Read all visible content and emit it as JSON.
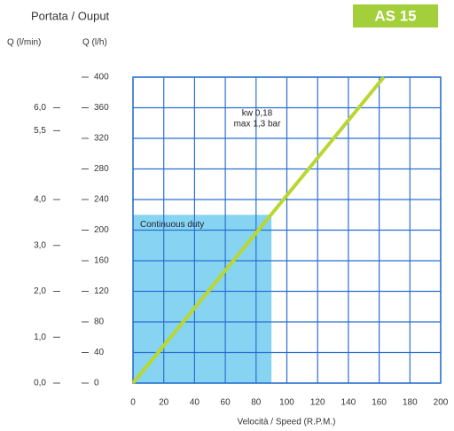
{
  "chart_data": {
    "type": "line",
    "title": "Portata / Ouput",
    "badge": "AS 15",
    "badge_color": "#a3cf3a",
    "x_label": "Velocità / Speed (R.P.M.)",
    "y_label": "Q (l/h)",
    "y2_label": "Q (l/min)",
    "x": [
      0,
      163
    ],
    "series": [
      {
        "color": "#b9d631",
        "values": [
          0,
          400
        ]
      }
    ],
    "xlim": [
      0,
      200
    ],
    "xticks": [
      0,
      20,
      40,
      60,
      80,
      100,
      120,
      140,
      160,
      180,
      200
    ],
    "ylim": [
      0,
      400
    ],
    "yticks": [
      0,
      40,
      80,
      120,
      160,
      200,
      240,
      280,
      320,
      360,
      400
    ],
    "y2lim": [
      0,
      6.667
    ],
    "y2ticks": [
      {
        "value": 0,
        "label": "0,0"
      },
      {
        "value": 1,
        "label": "1,0"
      },
      {
        "value": 2,
        "label": "2,0"
      },
      {
        "value": 3,
        "label": "3,0"
      },
      {
        "value": 4,
        "label": "4,0"
      },
      {
        "value": 5.5,
        "label": "5,5"
      },
      {
        "value": 6,
        "label": "6,0"
      }
    ],
    "regions": [
      {
        "label": "Continuous duty",
        "x": [
          0,
          90
        ],
        "y": [
          0,
          220
        ],
        "color": "#86d4f2"
      }
    ],
    "annotations": [
      "kw 0,18",
      "max 1,3 bar"
    ],
    "grid": true,
    "grid_color": "#2a6fd1"
  }
}
